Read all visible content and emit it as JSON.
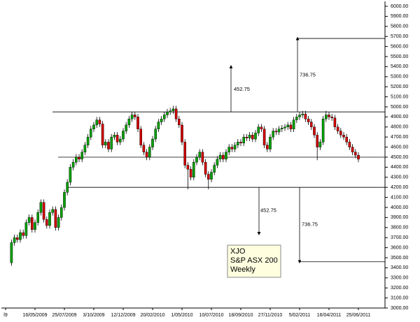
{
  "chart_data": {
    "type": "candlestick",
    "categories": [
      "l9",
      null,
      null,
      null,
      null,
      null,
      null,
      null,
      null,
      null,
      "16/05/2009",
      null,
      null,
      null,
      null,
      null,
      null,
      null,
      null,
      null,
      "25/07/2009",
      null,
      null,
      null,
      null,
      null,
      null,
      null,
      null,
      null,
      "3/10/2009",
      null,
      null,
      null,
      null,
      null,
      null,
      null,
      null,
      null,
      "12/12/2009",
      null,
      null,
      null,
      null,
      null,
      null,
      null,
      null,
      null,
      "20/02/2010",
      null,
      null,
      null,
      null,
      null,
      null,
      null,
      null,
      null,
      "1/05/2010",
      null,
      null,
      null,
      null,
      null,
      null,
      null,
      null,
      null,
      "10/07/2010",
      null,
      null,
      null,
      null,
      null,
      null,
      null,
      null,
      null,
      "18/09/2010",
      null,
      null,
      null,
      null,
      null,
      null,
      null,
      null,
      null,
      "27/11/2010",
      null,
      null,
      null,
      null,
      null,
      null,
      null,
      null,
      null,
      "5/02/2011",
      null,
      null,
      null,
      null,
      null,
      null,
      null,
      null,
      null,
      "16/04/2011",
      null,
      null,
      null,
      null,
      null,
      null,
      null,
      null,
      null,
      "25/06/2011"
    ],
    "ohlc": [
      null,
      null,
      [
        3450,
        3680,
        3420,
        3650
      ],
      [
        3650,
        3730,
        3620,
        3700
      ],
      [
        3700,
        3730,
        3650,
        3680
      ],
      [
        3680,
        3780,
        3650,
        3750
      ],
      [
        3750,
        3780,
        3690,
        3720
      ],
      [
        3720,
        3880,
        3690,
        3850
      ],
      [
        3850,
        3930,
        3820,
        3900
      ],
      [
        3900,
        3930,
        3750,
        3780
      ],
      [
        3780,
        3880,
        3750,
        3850
      ],
      [
        3850,
        3980,
        3820,
        3950
      ],
      [
        3950,
        4080,
        3920,
        4050
      ],
      [
        4050,
        4080,
        3850,
        3880
      ],
      [
        3880,
        3910,
        3790,
        3820
      ],
      [
        3820,
        3980,
        3790,
        3950
      ],
      [
        3950,
        4010,
        3920,
        3980
      ],
      [
        3980,
        4010,
        3770,
        3800
      ],
      [
        3800,
        3930,
        3770,
        3900
      ],
      [
        3900,
        4030,
        3870,
        4000
      ],
      [
        4000,
        4180,
        3970,
        4150
      ],
      [
        4150,
        4280,
        4120,
        4250
      ],
      [
        4250,
        4430,
        4220,
        4400
      ],
      [
        4400,
        4480,
        4370,
        4450
      ],
      [
        4450,
        4530,
        4420,
        4500
      ],
      [
        4500,
        4530,
        4450,
        4480
      ],
      [
        4480,
        4580,
        4450,
        4550
      ],
      [
        4550,
        4650,
        4520,
        4620
      ],
      [
        4620,
        4730,
        4590,
        4700
      ],
      [
        4700,
        4810,
        4670,
        4780
      ],
      [
        4780,
        4850,
        4750,
        4820
      ],
      [
        4820,
        4900,
        4790,
        4870
      ],
      [
        4870,
        4900,
        4800,
        4830
      ],
      [
        4830,
        4860,
        4590,
        4620
      ],
      [
        4620,
        4680,
        4590,
        4650
      ],
      [
        4650,
        4680,
        4550,
        4580
      ],
      [
        4580,
        4730,
        4550,
        4700
      ],
      [
        4700,
        4750,
        4670,
        4720
      ],
      [
        4720,
        4750,
        4620,
        4650
      ],
      [
        4650,
        4710,
        4620,
        4680
      ],
      [
        4680,
        4790,
        4650,
        4760
      ],
      [
        4760,
        4850,
        4730,
        4820
      ],
      [
        4820,
        4910,
        4790,
        4880
      ],
      [
        4880,
        4950,
        4850,
        4920
      ],
      [
        4920,
        4950,
        4870,
        4900
      ],
      [
        4900,
        4930,
        4750,
        4780
      ],
      [
        4780,
        4810,
        4590,
        4620
      ],
      [
        4620,
        4650,
        4520,
        4550
      ],
      [
        4550,
        4580,
        4470,
        4500
      ],
      [
        4500,
        4630,
        4470,
        4600
      ],
      [
        4600,
        4710,
        4570,
        4680
      ],
      [
        4680,
        4810,
        4650,
        4780
      ],
      [
        4780,
        4880,
        4750,
        4850
      ],
      [
        4850,
        4910,
        4820,
        4880
      ],
      [
        4880,
        4950,
        4850,
        4920
      ],
      [
        4920,
        4980,
        4890,
        4950
      ],
      [
        4950,
        4990,
        4920,
        4960
      ],
      [
        4960,
        5010,
        4930,
        4980
      ],
      [
        4980,
        5010,
        4850,
        4880
      ],
      [
        4880,
        4910,
        4790,
        4820
      ],
      [
        4820,
        4850,
        4620,
        4650
      ],
      [
        4650,
        4680,
        4390,
        4420
      ],
      [
        4420,
        4450,
        4180,
        4380
      ],
      [
        4380,
        4410,
        4270,
        4300
      ],
      [
        4300,
        4480,
        4270,
        4450
      ],
      [
        4450,
        4530,
        4420,
        4500
      ],
      [
        4500,
        4580,
        4470,
        4550
      ],
      [
        4550,
        4580,
        4420,
        4450
      ],
      [
        4450,
        4480,
        4300,
        4330
      ],
      [
        4330,
        4360,
        4180,
        4280
      ],
      [
        4280,
        4380,
        4250,
        4350
      ],
      [
        4350,
        4450,
        4320,
        4420
      ],
      [
        4420,
        4510,
        4390,
        4480
      ],
      [
        4480,
        4550,
        4450,
        4520
      ],
      [
        4520,
        4550,
        4450,
        4480
      ],
      [
        4480,
        4580,
        4450,
        4550
      ],
      [
        4550,
        4630,
        4520,
        4600
      ],
      [
        4600,
        4630,
        4550,
        4580
      ],
      [
        4580,
        4650,
        4550,
        4620
      ],
      [
        4620,
        4680,
        4590,
        4650
      ],
      [
        4650,
        4680,
        4610,
        4640
      ],
      [
        4640,
        4730,
        4610,
        4700
      ],
      [
        4700,
        4730,
        4660,
        4690
      ],
      [
        4690,
        4750,
        4660,
        4720
      ],
      [
        4720,
        4750,
        4650,
        4680
      ],
      [
        4680,
        4770,
        4650,
        4740
      ],
      [
        4740,
        4830,
        4710,
        4800
      ],
      [
        4800,
        4830,
        4750,
        4780
      ],
      [
        4780,
        4810,
        4590,
        4620
      ],
      [
        4620,
        4650,
        4550,
        4580
      ],
      [
        4580,
        4730,
        4550,
        4700
      ],
      [
        4700,
        4790,
        4670,
        4760
      ],
      [
        4760,
        4790,
        4720,
        4750
      ],
      [
        4750,
        4810,
        4720,
        4780
      ],
      [
        4780,
        4820,
        4750,
        4790
      ],
      [
        4790,
        4830,
        4760,
        4800
      ],
      [
        4800,
        4850,
        4770,
        4820
      ],
      [
        4820,
        4850,
        4750,
        4780
      ],
      [
        4780,
        4900,
        4750,
        4870
      ],
      [
        4870,
        4930,
        4840,
        4900
      ],
      [
        4900,
        4950,
        4870,
        4920
      ],
      [
        4920,
        4960,
        4890,
        4930
      ],
      [
        4930,
        4960,
        4850,
        4880
      ],
      [
        4880,
        4910,
        4820,
        4850
      ],
      [
        4850,
        4880,
        4770,
        4800
      ],
      [
        4800,
        4830,
        4690,
        4720
      ],
      [
        4720,
        4750,
        4470,
        4600
      ],
      [
        4600,
        4680,
        4570,
        4650
      ],
      [
        4650,
        4910,
        4620,
        4880
      ],
      [
        4880,
        4960,
        4850,
        4920
      ],
      [
        4920,
        4950,
        4870,
        4900
      ],
      [
        4900,
        4930,
        4860,
        4890
      ],
      [
        4890,
        4920,
        4770,
        4800
      ],
      [
        4800,
        4830,
        4730,
        4760
      ],
      [
        4760,
        4790,
        4690,
        4720
      ],
      [
        4720,
        4750,
        4670,
        4700
      ],
      [
        4700,
        4730,
        4620,
        4650
      ],
      [
        4650,
        4680,
        4570,
        4600
      ],
      [
        4600,
        4630,
        4520,
        4550
      ],
      [
        4550,
        4580,
        4490,
        4520
      ],
      [
        4520,
        4550,
        4450,
        4480
      ]
    ],
    "up_color": "#00a000",
    "down_color": "#d00000",
    "ylim": [
      3000,
      6000
    ],
    "yticks": [
      {
        "value": 3000,
        "label": "3000.00"
      },
      {
        "value": 3100,
        "label": "3100.00"
      },
      {
        "value": 3200,
        "label": "3200.00"
      },
      {
        "value": 3300,
        "label": "3300.00"
      },
      {
        "value": 3400,
        "label": "3400.00"
      },
      {
        "value": 3500,
        "label": "3500.00"
      },
      {
        "value": 3600,
        "label": "3600.00"
      },
      {
        "value": 3700,
        "label": "3700.00"
      },
      {
        "value": 3800,
        "label": "3800.00"
      },
      {
        "value": 3900,
        "label": "3900.00"
      },
      {
        "value": 4000,
        "label": "4000.00"
      },
      {
        "value": 4100,
        "label": "4100.00"
      },
      {
        "value": 4200,
        "label": "4200.00"
      },
      {
        "value": 4300,
        "label": "4300.00"
      },
      {
        "value": 4400,
        "label": "4400.00"
      },
      {
        "value": 4500,
        "label": "4500.00"
      },
      {
        "value": 4600,
        "label": "4600.00"
      },
      {
        "value": 4700,
        "label": "4700.00"
      },
      {
        "value": 4800,
        "label": "4800.00"
      },
      {
        "value": 4900,
        "label": "4900.00"
      },
      {
        "value": 5000,
        "label": "5000.00"
      },
      {
        "value": 5100,
        "label": "5100.00"
      },
      {
        "value": 5200,
        "label": "5200.00"
      },
      {
        "value": 5300,
        "label": "5300.00"
      },
      {
        "value": 5400,
        "label": "5400.00"
      },
      {
        "value": 5500,
        "label": "5500.00"
      },
      {
        "value": 5600,
        "label": "5600.00"
      },
      {
        "value": 5700,
        "label": "5700.00"
      },
      {
        "value": 5800,
        "label": "5800.00"
      },
      {
        "value": 5900,
        "label": "5900.00"
      },
      {
        "value": 6000,
        "label": "6000.00"
      }
    ],
    "levels": [
      4950,
      4500,
      4200,
      5680,
      3460
    ],
    "arrows": [
      {
        "label": "452.75",
        "from": 4950,
        "to": 5400
      },
      {
        "label": "736.75",
        "from": 4950,
        "to": 5680
      },
      {
        "label": "452.75",
        "from": 4200,
        "to": 3740
      },
      {
        "label": "736.75",
        "from": 4200,
        "to": 3460
      }
    ],
    "legend_box": [
      "XJO",
      "S&P ASX 200",
      "Weekly"
    ]
  }
}
